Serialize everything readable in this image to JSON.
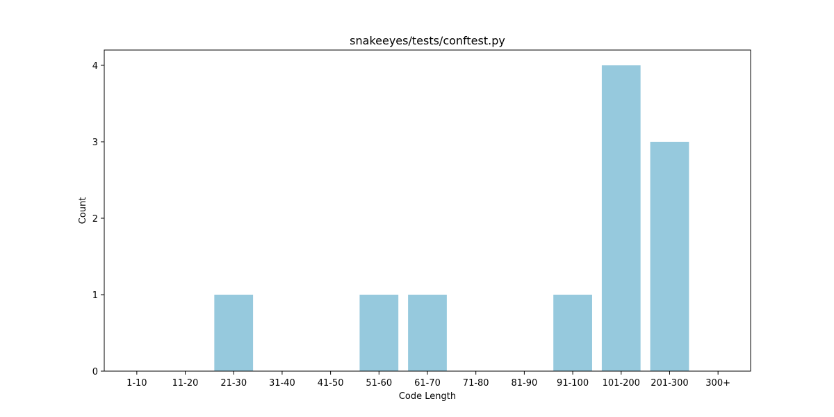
{
  "chart_data": {
    "type": "bar",
    "title": "snakeeyes/tests/conftest.py",
    "xlabel": "Code Length",
    "ylabel": "Count",
    "categories": [
      "1-10",
      "11-20",
      "21-30",
      "31-40",
      "41-50",
      "51-60",
      "61-70",
      "71-80",
      "81-90",
      "91-100",
      "101-200",
      "201-300",
      "300+"
    ],
    "values": [
      0,
      0,
      1,
      0,
      0,
      1,
      1,
      0,
      0,
      1,
      4,
      3,
      0
    ],
    "yticks": [
      0,
      1,
      2,
      3,
      4
    ],
    "ylim": [
      0,
      4.2
    ],
    "grid": false,
    "bar_color": "#96c9dd"
  }
}
